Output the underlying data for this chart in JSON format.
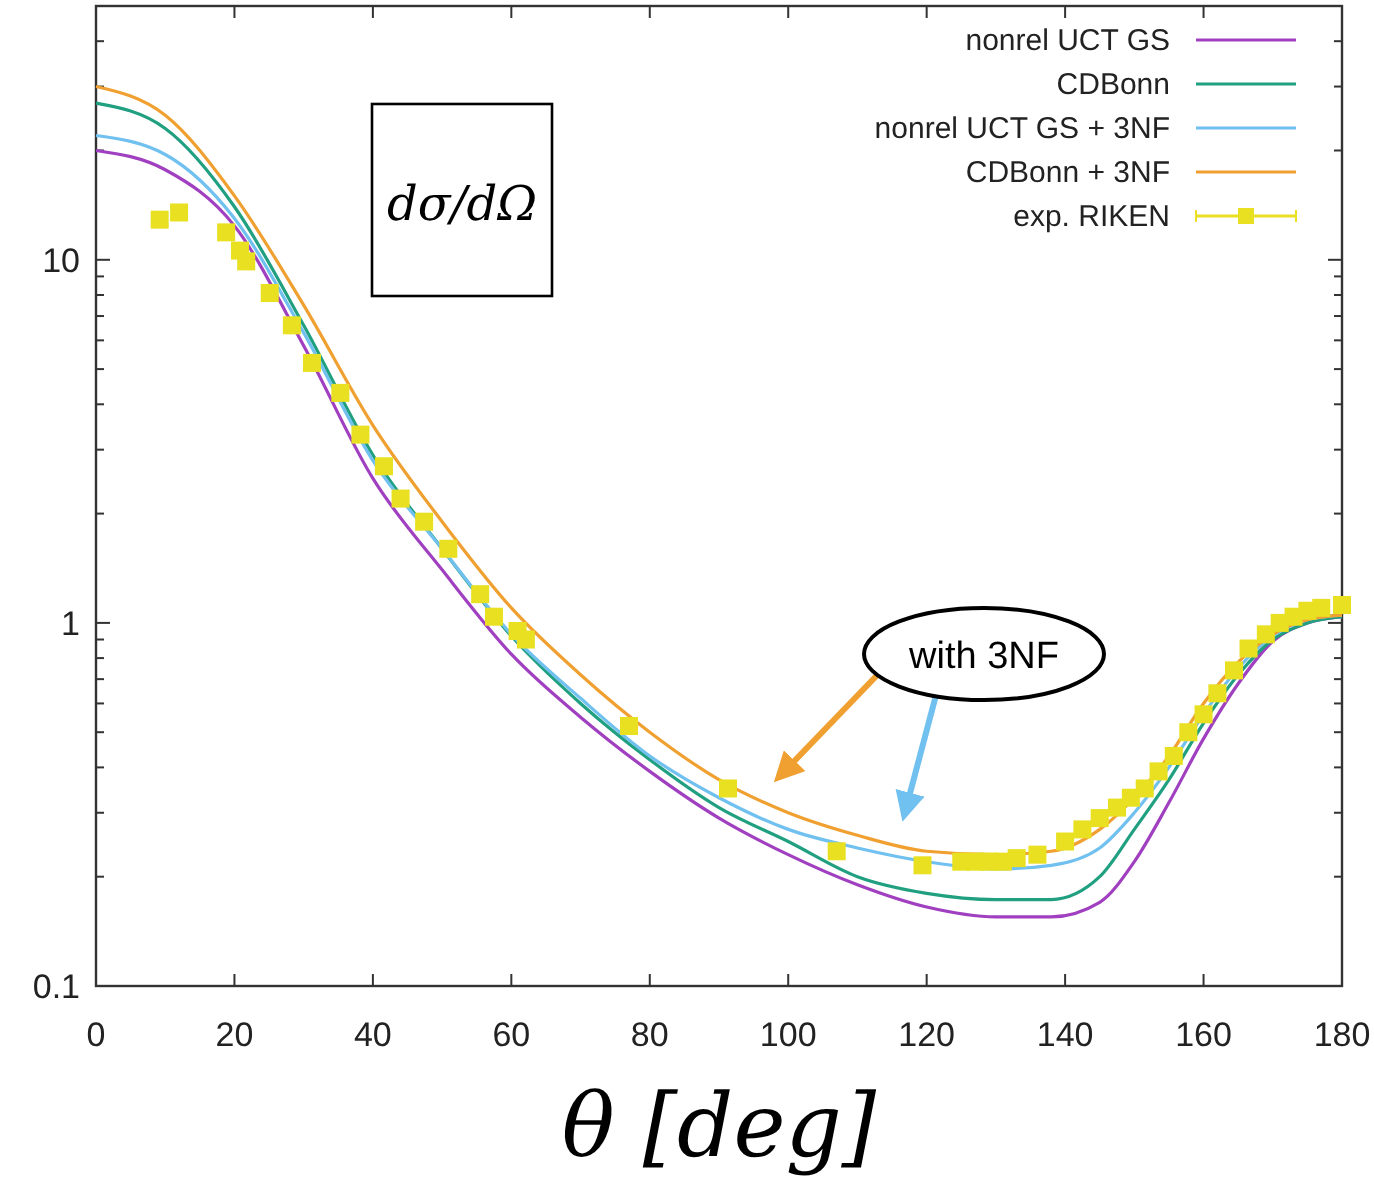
{
  "chart_data": {
    "type": "line",
    "xlabel": "θ [deg]",
    "ylabel": "dσ/dΩ",
    "log": "y",
    "grid": false,
    "legend": "top right",
    "xlim": [
      0,
      180
    ],
    "xticks": [
      0,
      20,
      40,
      60,
      80,
      100,
      120,
      140,
      160,
      180
    ],
    "ylim": [
      0.1,
      50
    ],
    "yticks": [
      0.1,
      {
        "value": 0.2,
        "label": null
      },
      {
        "value": 0.3,
        "label": null
      },
      {
        "value": 0.4,
        "label": null
      },
      {
        "value": 0.5,
        "label": null
      },
      {
        "value": 0.6,
        "label": null
      },
      {
        "value": 0.7,
        "label": null
      },
      {
        "value": 0.8,
        "label": null
      },
      {
        "value": 0.9,
        "label": null
      },
      1,
      {
        "value": 2,
        "label": null
      },
      {
        "value": 3,
        "label": null
      },
      {
        "value": 4,
        "label": null
      },
      {
        "value": 5,
        "label": null
      },
      {
        "value": 6,
        "label": null
      },
      {
        "value": 7,
        "label": null
      },
      {
        "value": 8,
        "label": null
      },
      {
        "value": 9,
        "label": null
      },
      10,
      {
        "value": 20,
        "label": null
      },
      {
        "value": 30,
        "label": null
      },
      {
        "value": 40,
        "label": null
      }
    ],
    "annotations": [
      "with 3NF"
    ],
    "x": [
      0,
      10,
      20,
      30,
      40,
      50,
      60,
      70,
      80,
      90,
      100,
      110,
      120,
      130,
      138,
      145,
      150,
      155,
      160,
      165,
      170,
      175,
      180
    ],
    "series": [
      {
        "name": "nonrel UCT GS",
        "color": "#a040c0",
        "marker": "none",
        "values": [
          20,
          17.7,
          12.4,
          5.8,
          2.5,
          1.4,
          0.82,
          0.55,
          0.39,
          0.29,
          0.23,
          0.19,
          0.165,
          0.155,
          0.155,
          0.17,
          0.22,
          0.32,
          0.48,
          0.68,
          0.89,
          1.0,
          1.04
        ]
      },
      {
        "name": "CDBonn",
        "color": "#20a080",
        "marker": "none",
        "values": [
          27,
          23,
          14,
          6.6,
          2.9,
          1.6,
          0.92,
          0.6,
          0.42,
          0.31,
          0.25,
          0.2,
          0.18,
          0.173,
          0.173,
          0.2,
          0.27,
          0.37,
          0.53,
          0.72,
          0.9,
          1.0,
          1.04
        ]
      },
      {
        "name": "nonrel UCT GS + 3NF",
        "color": "#70c0f0",
        "marker": "none",
        "values": [
          22,
          19.5,
          13,
          6.3,
          2.8,
          1.6,
          0.93,
          0.62,
          0.43,
          0.33,
          0.27,
          0.24,
          0.22,
          0.21,
          0.215,
          0.24,
          0.3,
          0.4,
          0.56,
          0.75,
          0.92,
          1.02,
          1.05
        ]
      },
      {
        "name": "CDBonn + 3NF",
        "color": "#f0a030",
        "marker": "none",
        "values": [
          30,
          25,
          15,
          7.5,
          3.5,
          1.9,
          1.1,
          0.72,
          0.5,
          0.37,
          0.3,
          0.26,
          0.235,
          0.23,
          0.235,
          0.27,
          0.33,
          0.43,
          0.6,
          0.78,
          0.93,
          1.02,
          1.05
        ]
      },
      {
        "name": "exp. RIKEN",
        "color": "#e8e020",
        "type": "scatter",
        "marker": "square",
        "x": [
          9.2,
          12,
          18.8,
          20.8,
          21.7,
          25.1,
          28.3,
          31.2,
          35.3,
          38.2,
          41.6,
          44,
          47.4,
          50.9,
          55.5,
          57.5,
          60.9,
          62.1,
          77,
          91.3,
          107,
          119.4,
          125,
          127,
          129,
          131,
          133,
          136,
          140,
          142.5,
          145,
          147.5,
          149.5,
          151.5,
          153.5,
          155.7,
          157.8,
          160,
          162,
          164.4,
          166.5,
          169,
          171,
          173,
          175,
          177,
          180
        ],
        "values": [
          12.9,
          13.5,
          11.9,
          10.6,
          9.9,
          8.1,
          6.6,
          5.2,
          4.3,
          3.3,
          2.7,
          2.2,
          1.9,
          1.6,
          1.2,
          1.04,
          0.95,
          0.9,
          0.52,
          0.35,
          0.235,
          0.215,
          0.22,
          0.22,
          0.22,
          0.22,
          0.225,
          0.23,
          0.25,
          0.27,
          0.29,
          0.31,
          0.33,
          0.35,
          0.39,
          0.43,
          0.5,
          0.56,
          0.64,
          0.74,
          0.85,
          0.93,
          1.0,
          1.04,
          1.08,
          1.1,
          1.12
        ]
      }
    ]
  }
}
